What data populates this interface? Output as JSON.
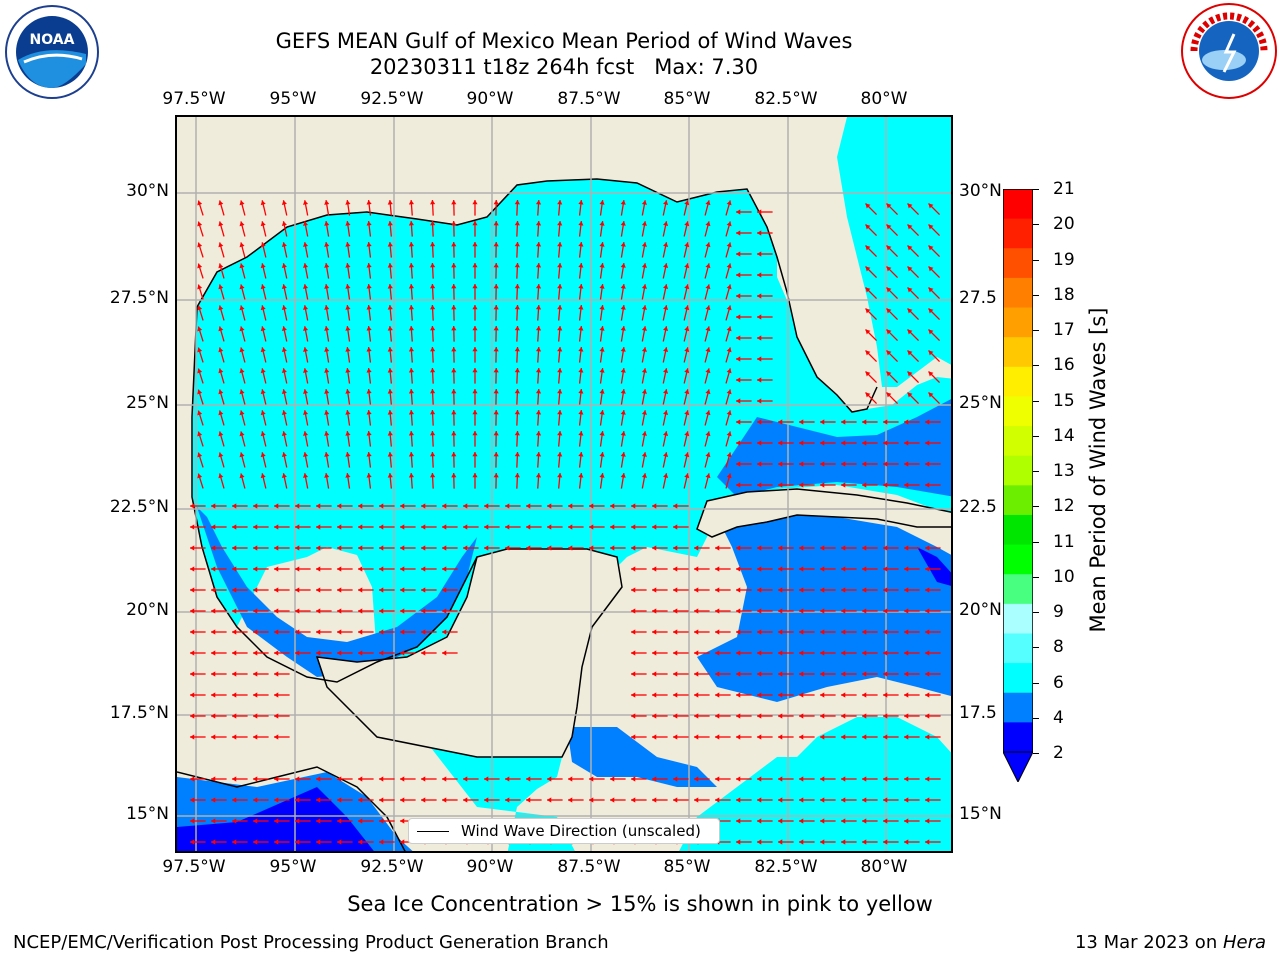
{
  "title": {
    "line1": "GEFS MEAN Gulf of Mexico Mean Period of Wind Waves",
    "line2": "20230311 t18z 264h fcst   Max: 7.30"
  },
  "axes": {
    "lon_ticks": [
      "97.5°W",
      "95°W",
      "92.5°W",
      "90°W",
      "87.5°W",
      "85°W",
      "82.5°W",
      "80°W"
    ],
    "lat_ticks_left": [
      "30°N",
      "27.5°N",
      "25°N",
      "22.5°N",
      "20°N",
      "17.5°N",
      "15°N"
    ],
    "lat_ticks_right": [
      "30°N",
      "27.5",
      "25°N",
      "22.5",
      "20°N",
      "17.5",
      "15°N"
    ]
  },
  "legend": {
    "label": "Wind Wave Direction (unscaled)"
  },
  "colorbar": {
    "label": "Mean Period of Wind Waves [s]",
    "ticks": [
      "21",
      "20",
      "19",
      "18",
      "17",
      "16",
      "15",
      "14",
      "13",
      "12",
      "11",
      "10",
      "9",
      "8",
      "6",
      "4",
      "2"
    ],
    "colors": [
      "#ff0000",
      "#ff2000",
      "#ff5000",
      "#ff7f00",
      "#ffa000",
      "#ffc800",
      "#ffee00",
      "#f0ff00",
      "#d2ff00",
      "#b0ff00",
      "#6cee00",
      "#00e600",
      "#00ff00",
      "#48ff80",
      "#aaffff",
      "#55ffff",
      "#00ffff",
      "#0080ff",
      "#0000ff"
    ],
    "range": [
      2,
      21
    ]
  },
  "map": {
    "region": "Gulf of Mexico",
    "lon_range": [
      -98.0,
      -78.2
    ],
    "lat_range": [
      14.0,
      31.8
    ],
    "land_color": "#efecdc",
    "ocean_cyan": "#00ffff",
    "ocean_mid": "#0080ff",
    "ocean_dark": "#0000ff",
    "arrow_color": "#ff0000",
    "gridlines": true
  },
  "note": "Sea Ice Concentration > 15% is shown in pink to yellow",
  "footer": {
    "left": "NCEP/EMC/Verification Post Processing Product Generation Branch",
    "right_date": "13 Mar 2023 on ",
    "right_host": "Hera"
  },
  "logos": {
    "left": "noaa-logo",
    "right": "nws-logo",
    "left_text": "NOAA",
    "right_text": "NATIONAL WEATHER SERVICE"
  }
}
